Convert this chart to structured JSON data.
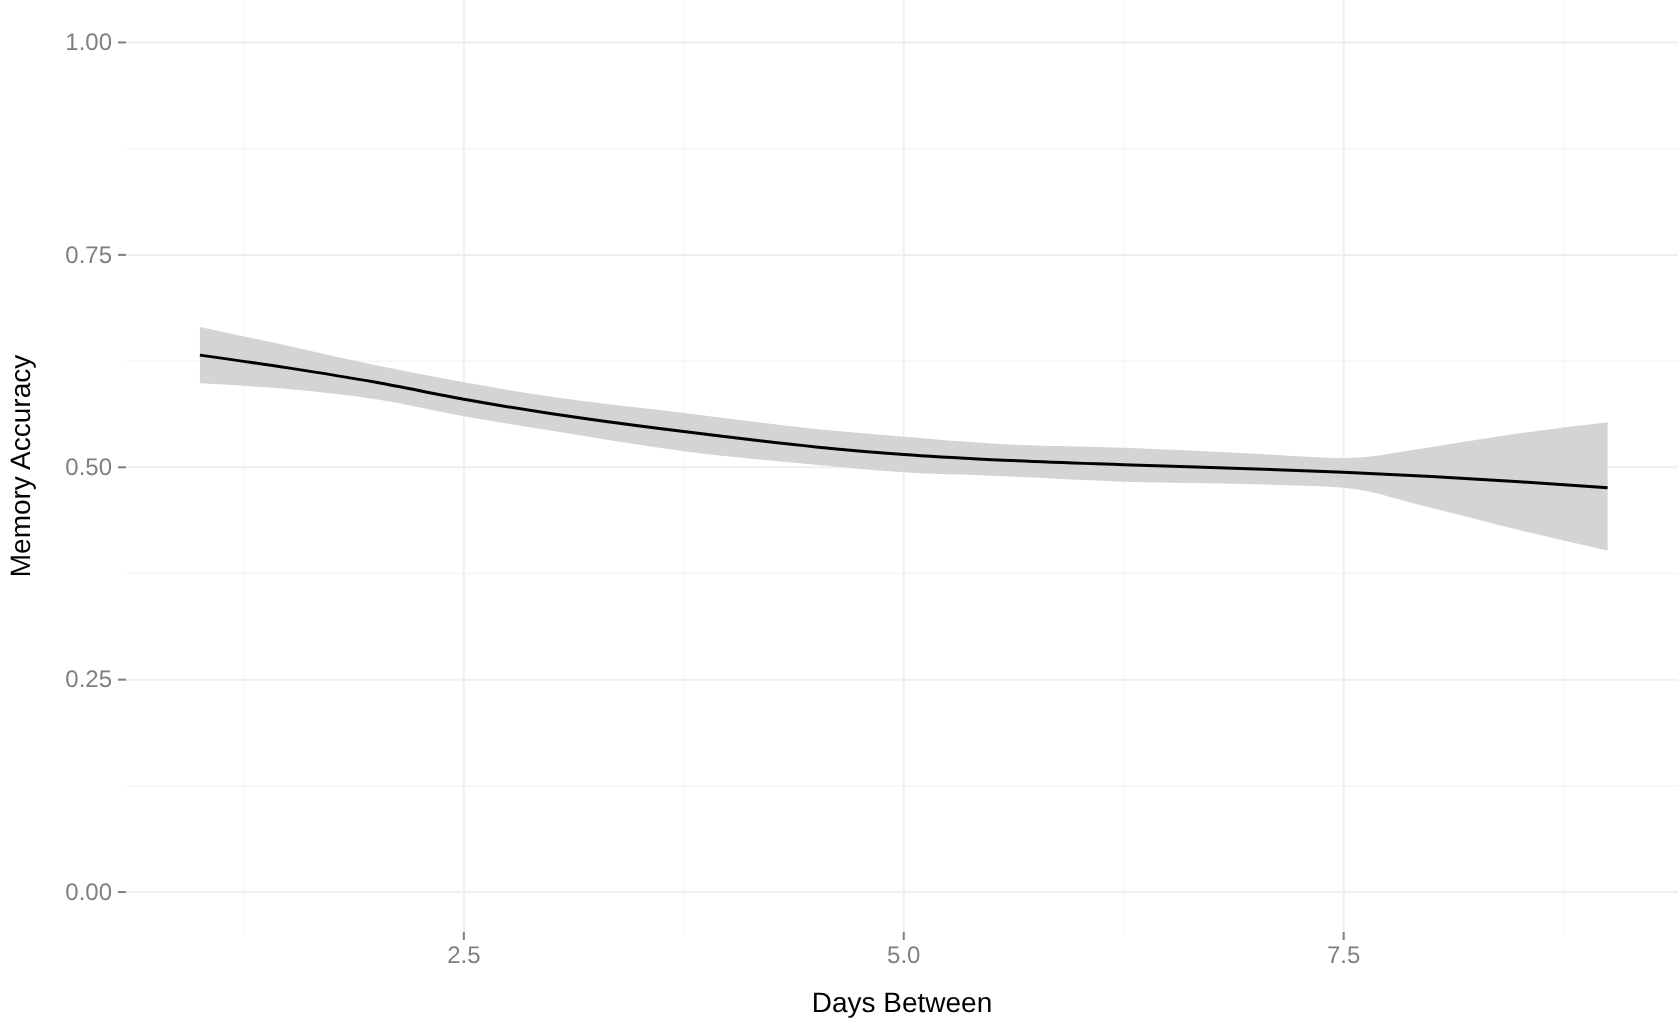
{
  "chart_data": {
    "type": "line",
    "xlabel": "Days Between",
    "ylabel": "Memory Accuracy",
    "xlim": [
      0.58,
      9.4
    ],
    "xticks": [
      {
        "value": 2.5,
        "label": "2.5"
      },
      {
        "value": 5,
        "label": "5.0"
      },
      {
        "value": 7.5,
        "label": "7.5"
      }
    ],
    "ylim": [
      -0.047,
      1.05
    ],
    "yticks": [
      {
        "value": 0,
        "label": "0.00"
      },
      {
        "value": 0.25,
        "label": "0.25"
      },
      {
        "value": 0.5,
        "label": "0.50"
      },
      {
        "value": 0.75,
        "label": "0.75"
      },
      {
        "value": 1,
        "label": "1.00"
      }
    ],
    "grid": true,
    "marker": "none",
    "line_style": "solid",
    "x": [
      1,
      1.5,
      2,
      2.5,
      3,
      3.75,
      4.5,
      5,
      5.5,
      6.25,
      7,
      7.5,
      8,
      8.5,
      9
    ],
    "series": [
      {
        "color": "#000000",
        "values": [
          0.632,
          0.617,
          0.6,
          0.58,
          0.563,
          0.542,
          0.524,
          0.515,
          0.509,
          0.503,
          0.498,
          0.494,
          0.489,
          0.483,
          0.476
        ],
        "lower": [
          0.599,
          0.592,
          0.58,
          0.56,
          0.543,
          0.519,
          0.503,
          0.494,
          0.49,
          0.483,
          0.48,
          0.476,
          0.452,
          0.426,
          0.402
        ],
        "upper": [
          0.665,
          0.643,
          0.62,
          0.6,
          0.583,
          0.564,
          0.545,
          0.536,
          0.528,
          0.523,
          0.516,
          0.511,
          0.524,
          0.54,
          0.553
        ]
      }
    ]
  }
}
